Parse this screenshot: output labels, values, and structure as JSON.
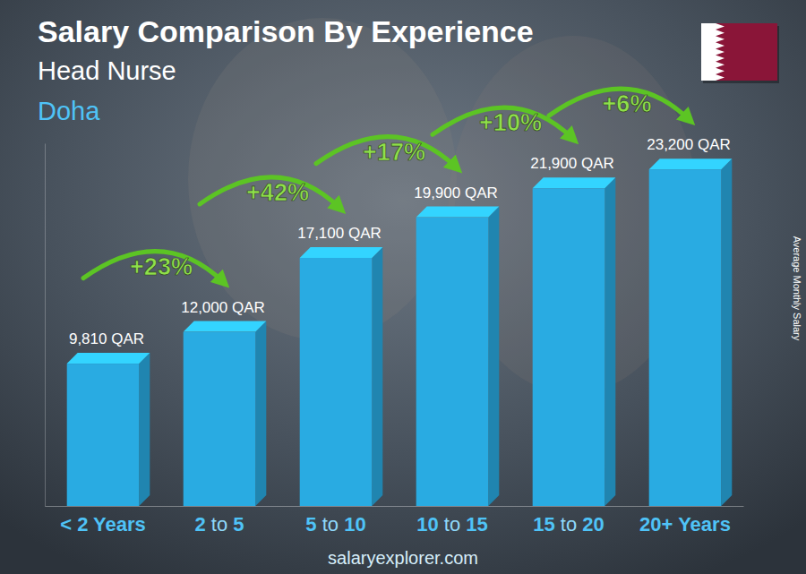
{
  "chart_data": {
    "type": "bar",
    "title": "Salary Comparison By Experience",
    "subtitle": "Head Nurse",
    "location": "Doha",
    "y_label": "Average Monthly Salary",
    "categories": [
      "< 2 Years",
      "2 to 5",
      "5 to 10",
      "10 to 15",
      "15 to 20",
      "20+ Years"
    ],
    "values": [
      9810,
      12000,
      17100,
      19900,
      21900,
      23200
    ],
    "value_labels": [
      "9,810 QAR",
      "12,000 QAR",
      "17,100 QAR",
      "19,900 QAR",
      "21,900 QAR",
      "23,200 QAR"
    ],
    "annotations": [
      "+23%",
      "+42%",
      "+17%",
      "+10%",
      "+6%"
    ],
    "source": "salaryexplorer.com",
    "color": "#29abe2",
    "ylim": [
      0,
      25000
    ],
    "tick_labels": "x",
    "data_labels": true,
    "grid": false
  }
}
